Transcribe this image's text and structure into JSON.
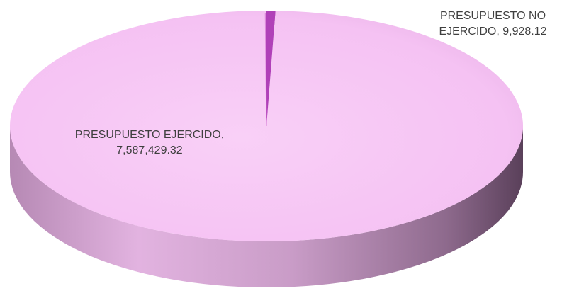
{
  "chart_data": {
    "type": "pie",
    "style": "3d",
    "categories": [
      "PRESUPUESTO EJERCIDO",
      "PRESUPUESTO NO EJERCIDO"
    ],
    "values": [
      7587429.32,
      9928.12
    ],
    "data_labels": [
      {
        "line1": "PRESUPUESTO EJERCIDO,",
        "line2": "7,587,429.32"
      },
      {
        "line1": "PRESUPUESTO NO",
        "line2": "EJERCIDO, 9,928.12"
      }
    ],
    "colors": {
      "top": "#f5c2f3",
      "top_highlight": "#fde4fb",
      "side_light": "#d8a6d6",
      "side_dark": "#6f4d6e",
      "small_slice": "#b040b8"
    },
    "legend": "none",
    "grid": false
  }
}
